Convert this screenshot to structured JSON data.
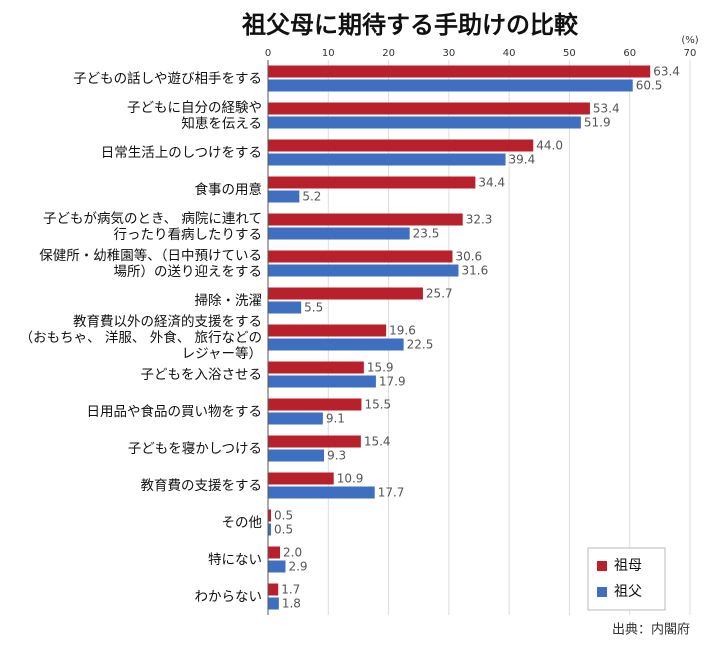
{
  "chart_data": {
    "type": "barh",
    "title": "祖父母に期待する手助けの比較",
    "unit": "(%)",
    "source": "出典：内閣府",
    "categories": [
      "子どもの話しや遊び相手をする",
      "子どもに自分の経験や\n知恵を伝える",
      "日常生活上のしつけをする",
      "食事の用意",
      "子どもが病気のとき、 病院に連れて\n行ったり看病したりする",
      "保健所・幼稚園等、（日中預けている\n場所）の送り迎えをする",
      "掃除・洗濯",
      "教育費以外の経済的支援をする\n（おもちゃ、 洋服、 外食、 旅行などの\nレジャー等）",
      "子どもを入浴させる",
      "日用品や食品の買い物をする",
      "子どもを寝かしつける",
      "教育費の支援をする",
      "その他",
      "特にない",
      "わからない"
    ],
    "series": [
      {
        "name": "祖母",
        "color": "#b8202b",
        "values": [
          63.4,
          53.4,
          44,
          34.4,
          32.3,
          30.6,
          25.7,
          19.6,
          15.9,
          15.5,
          15.4,
          10.9,
          0.5,
          2,
          1.7
        ],
        "value_labels": [
          "63.4",
          "53.4",
          "44.0",
          "34.4",
          "32.3",
          "30.6",
          "25.7",
          "19.6",
          "15.9",
          "15.5",
          "15.4",
          "10.9",
          "0.5",
          "2.0",
          "1.7"
        ]
      },
      {
        "name": "祖父",
        "color": "#3f6fc0",
        "values": [
          60.5,
          51.9,
          39.4,
          5.2,
          23.5,
          31.6,
          5.5,
          22.5,
          17.9,
          9.1,
          9.3,
          17.7,
          0.5,
          2.9,
          1.8
        ],
        "value_labels": [
          "60.5",
          "51.9",
          "39.4",
          "5.2",
          "23.5",
          "31.6",
          "5.5",
          "22.5",
          "17.9",
          "9.1",
          "9.3",
          "17.7",
          "0.5",
          "2.9",
          "1.8"
        ]
      }
    ],
    "xlim": [
      0,
      70
    ],
    "xticks": [
      0,
      10,
      20,
      30,
      40,
      50,
      60,
      70
    ],
    "grid": true,
    "legend": "lower right"
  }
}
